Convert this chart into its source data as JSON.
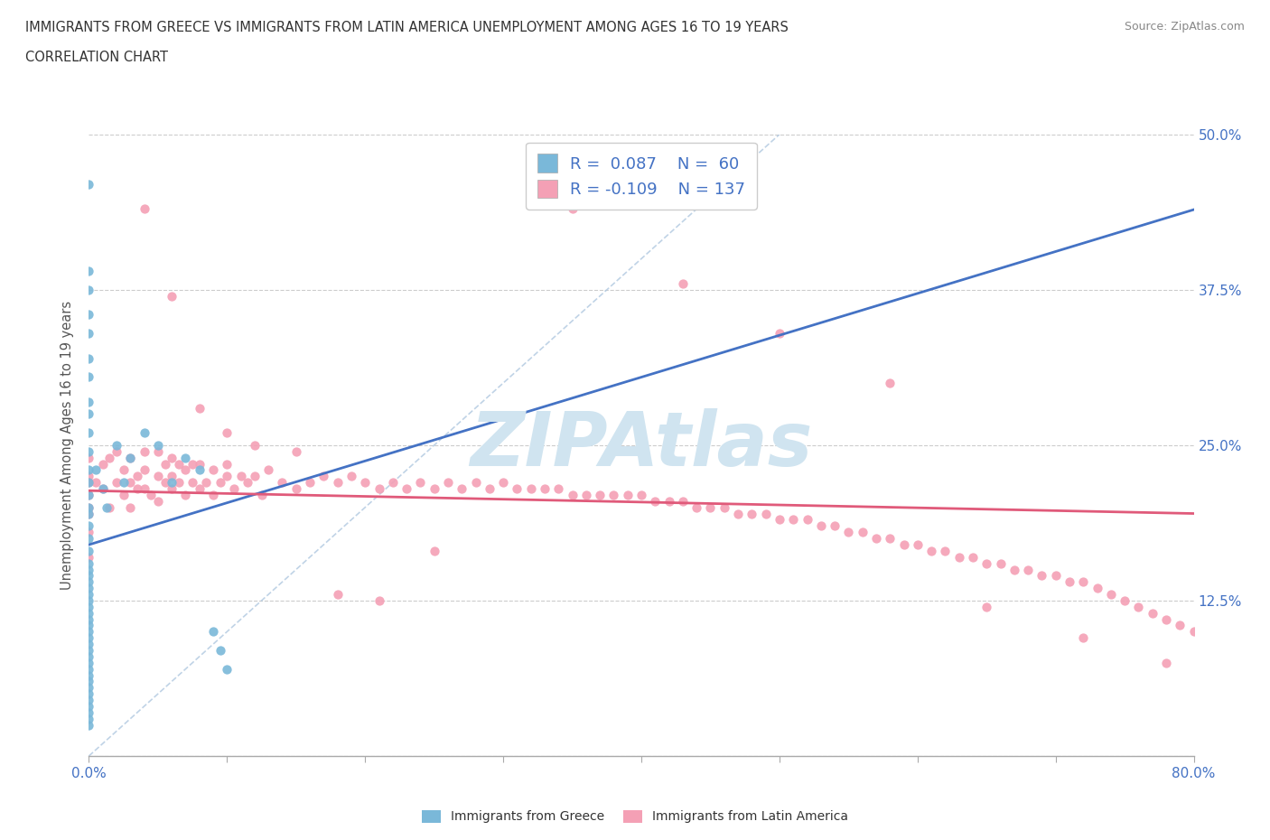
{
  "title_line1": "IMMIGRANTS FROM GREECE VS IMMIGRANTS FROM LATIN AMERICA UNEMPLOYMENT AMONG AGES 16 TO 19 YEARS",
  "title_line2": "CORRELATION CHART",
  "source_text": "Source: ZipAtlas.com",
  "ylabel": "Unemployment Among Ages 16 to 19 years",
  "xlim": [
    0.0,
    0.8
  ],
  "ylim": [
    0.0,
    0.5
  ],
  "xticks": [
    0.0,
    0.1,
    0.2,
    0.3,
    0.4,
    0.5,
    0.6,
    0.7,
    0.8
  ],
  "yticks": [
    0.0,
    0.125,
    0.25,
    0.375,
    0.5
  ],
  "greece_color": "#7ab8d9",
  "latin_color": "#f4a0b5",
  "greece_line_color": "#4472c4",
  "latin_line_color": "#e05a7a",
  "diag_color": "#b0c8e0",
  "greece_R": 0.087,
  "greece_N": 60,
  "latin_R": -0.109,
  "latin_N": 137,
  "watermark": "ZIPAtlas",
  "watermark_color": "#d0e4f0",
  "background_color": "#ffffff",
  "legend_label_greece": "Immigrants from Greece",
  "legend_label_latin": "Immigrants from Latin America",
  "greece_scatter_x": [
    0.0,
    0.0,
    0.0,
    0.0,
    0.0,
    0.0,
    0.0,
    0.0,
    0.0,
    0.0,
    0.0,
    0.0,
    0.0,
    0.0,
    0.0,
    0.0,
    0.0,
    0.0,
    0.0,
    0.0,
    0.0,
    0.0,
    0.0,
    0.0,
    0.0,
    0.0,
    0.0,
    0.0,
    0.0,
    0.0,
    0.0,
    0.0,
    0.0,
    0.0,
    0.0,
    0.0,
    0.0,
    0.0,
    0.0,
    0.0,
    0.0,
    0.0,
    0.0,
    0.0,
    0.0,
    0.0,
    0.005,
    0.01,
    0.013,
    0.02,
    0.025,
    0.03,
    0.04,
    0.05,
    0.06,
    0.07,
    0.08,
    0.09,
    0.095,
    0.1
  ],
  "greece_scatter_y": [
    0.46,
    0.39,
    0.375,
    0.355,
    0.34,
    0.32,
    0.305,
    0.285,
    0.275,
    0.26,
    0.245,
    0.23,
    0.22,
    0.21,
    0.2,
    0.195,
    0.185,
    0.175,
    0.165,
    0.155,
    0.15,
    0.145,
    0.14,
    0.135,
    0.13,
    0.125,
    0.12,
    0.115,
    0.11,
    0.105,
    0.1,
    0.095,
    0.09,
    0.085,
    0.08,
    0.075,
    0.07,
    0.065,
    0.06,
    0.055,
    0.05,
    0.045,
    0.04,
    0.035,
    0.03,
    0.025,
    0.23,
    0.215,
    0.2,
    0.25,
    0.22,
    0.24,
    0.26,
    0.25,
    0.22,
    0.24,
    0.23,
    0.1,
    0.085,
    0.07
  ],
  "latin_scatter_x": [
    0.0,
    0.0,
    0.0,
    0.0,
    0.0,
    0.0,
    0.0,
    0.0,
    0.005,
    0.01,
    0.01,
    0.015,
    0.015,
    0.02,
    0.02,
    0.025,
    0.025,
    0.03,
    0.03,
    0.03,
    0.035,
    0.035,
    0.04,
    0.04,
    0.04,
    0.045,
    0.05,
    0.05,
    0.05,
    0.055,
    0.055,
    0.06,
    0.06,
    0.06,
    0.065,
    0.065,
    0.07,
    0.07,
    0.075,
    0.075,
    0.08,
    0.08,
    0.085,
    0.09,
    0.09,
    0.095,
    0.1,
    0.1,
    0.105,
    0.11,
    0.115,
    0.12,
    0.125,
    0.13,
    0.14,
    0.15,
    0.16,
    0.17,
    0.18,
    0.19,
    0.2,
    0.21,
    0.22,
    0.23,
    0.24,
    0.25,
    0.26,
    0.27,
    0.28,
    0.29,
    0.3,
    0.31,
    0.32,
    0.33,
    0.34,
    0.35,
    0.36,
    0.37,
    0.38,
    0.39,
    0.4,
    0.41,
    0.42,
    0.43,
    0.44,
    0.45,
    0.46,
    0.47,
    0.48,
    0.49,
    0.5,
    0.51,
    0.52,
    0.53,
    0.54,
    0.55,
    0.56,
    0.57,
    0.58,
    0.59,
    0.6,
    0.61,
    0.62,
    0.63,
    0.64,
    0.65,
    0.66,
    0.67,
    0.68,
    0.69,
    0.7,
    0.71,
    0.72,
    0.73,
    0.74,
    0.75,
    0.76,
    0.77,
    0.78,
    0.79,
    0.8,
    0.35,
    0.43,
    0.5,
    0.58,
    0.65,
    0.72,
    0.78,
    0.04,
    0.06,
    0.08,
    0.1,
    0.12,
    0.15,
    0.18,
    0.21,
    0.25
  ],
  "latin_scatter_y": [
    0.2,
    0.22,
    0.18,
    0.24,
    0.16,
    0.21,
    0.195,
    0.225,
    0.22,
    0.215,
    0.235,
    0.2,
    0.24,
    0.22,
    0.245,
    0.21,
    0.23,
    0.22,
    0.24,
    0.2,
    0.225,
    0.215,
    0.23,
    0.215,
    0.245,
    0.21,
    0.225,
    0.205,
    0.245,
    0.22,
    0.235,
    0.215,
    0.225,
    0.24,
    0.22,
    0.235,
    0.21,
    0.23,
    0.22,
    0.235,
    0.215,
    0.235,
    0.22,
    0.21,
    0.23,
    0.22,
    0.225,
    0.235,
    0.215,
    0.225,
    0.22,
    0.225,
    0.21,
    0.23,
    0.22,
    0.215,
    0.22,
    0.225,
    0.22,
    0.225,
    0.22,
    0.215,
    0.22,
    0.215,
    0.22,
    0.215,
    0.22,
    0.215,
    0.22,
    0.215,
    0.22,
    0.215,
    0.215,
    0.215,
    0.215,
    0.21,
    0.21,
    0.21,
    0.21,
    0.21,
    0.21,
    0.205,
    0.205,
    0.205,
    0.2,
    0.2,
    0.2,
    0.195,
    0.195,
    0.195,
    0.19,
    0.19,
    0.19,
    0.185,
    0.185,
    0.18,
    0.18,
    0.175,
    0.175,
    0.17,
    0.17,
    0.165,
    0.165,
    0.16,
    0.16,
    0.155,
    0.155,
    0.15,
    0.15,
    0.145,
    0.145,
    0.14,
    0.14,
    0.135,
    0.13,
    0.125,
    0.12,
    0.115,
    0.11,
    0.105,
    0.1,
    0.44,
    0.38,
    0.34,
    0.3,
    0.12,
    0.095,
    0.075,
    0.44,
    0.37,
    0.28,
    0.26,
    0.25,
    0.245,
    0.13,
    0.125,
    0.165
  ]
}
